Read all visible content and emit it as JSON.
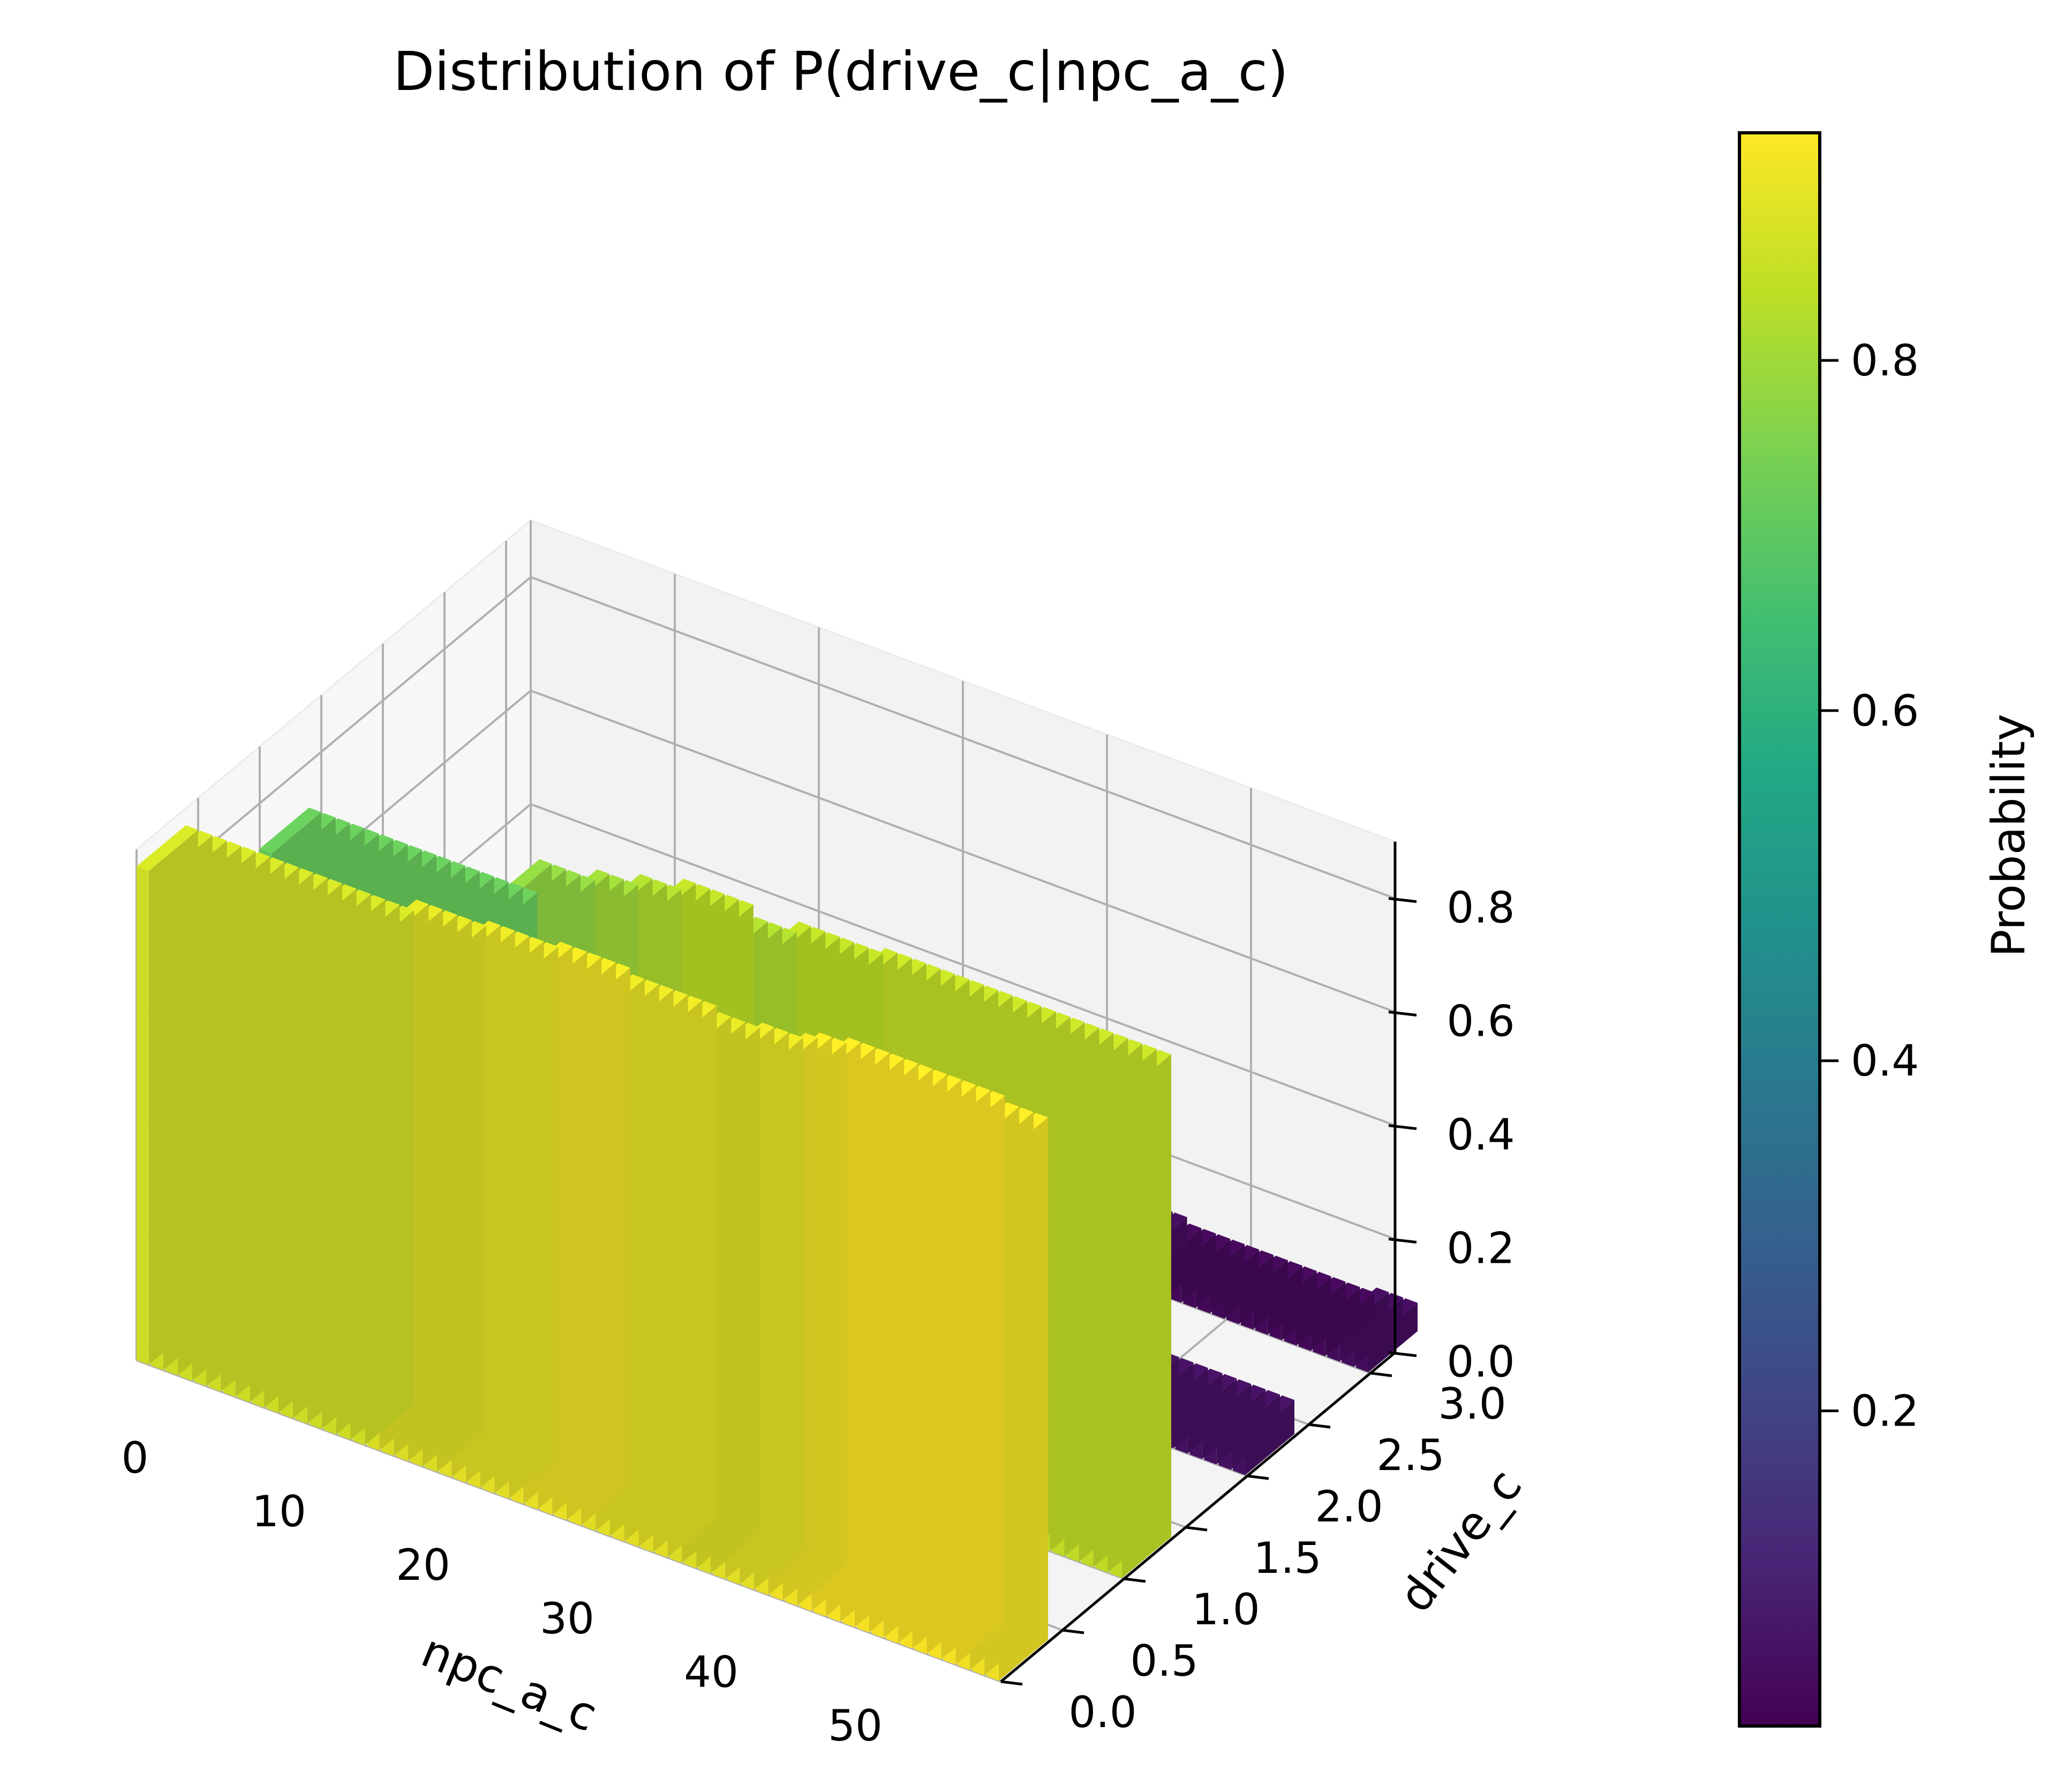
{
  "chart_data": {
    "type": "bar3d",
    "title": "Distribution of P(drive_c|npc_a_c)",
    "xlabel": "npc_a_c",
    "ylabel": "drive_c",
    "zlabel": "",
    "xlim": [
      0,
      60
    ],
    "ylim": [
      0,
      3.2
    ],
    "zlim": [
      0,
      0.9
    ],
    "x_ticks": [
      "0",
      "10",
      "20",
      "30",
      "40",
      "50"
    ],
    "y_ticks": [
      "0.0",
      "0.5",
      "1.0",
      "1.5",
      "2.0",
      "2.5",
      "3.0"
    ],
    "z_ticks": [
      "0.0",
      "0.2",
      "0.4",
      "0.6",
      "0.8"
    ],
    "grid": true,
    "colorbar": {
      "label": "Probability",
      "ticks": [
        "0.2",
        "0.4",
        "0.6",
        "0.8"
      ],
      "min": 0.02,
      "max": 0.93,
      "colormap": "viridis"
    },
    "series": [
      {
        "y": 0,
        "values": [
          0.87,
          0.87,
          0.87,
          0.87,
          0.87,
          0.87,
          0.87,
          0.87,
          0.87,
          0.87,
          0.87,
          0.87,
          0.87,
          0.87,
          0.87,
          0.87,
          0.89,
          0.89,
          0.89,
          0.89,
          0.89,
          0.9,
          0.9,
          0.9,
          0.9,
          0.9,
          0.91,
          0.91,
          0.91,
          0.91,
          0.91,
          0.9,
          0.9,
          0.9,
          0.9,
          0.9,
          0.9,
          0.89,
          0.89,
          0.89,
          0.9,
          0.9,
          0.9,
          0.91,
          0.92,
          0.92,
          0.93,
          0.93,
          0.93,
          0.93,
          0.93,
          0.93,
          0.93,
          0.93,
          0.93,
          0.93,
          0.93,
          0.92,
          0.92,
          0.92
        ]
      },
      {
        "y": 1,
        "values": [
          0.72,
          0.72,
          0.72,
          0.72,
          0.72,
          0.72,
          0.72,
          0.72,
          0.72,
          0.72,
          0.72,
          0.72,
          0.72,
          0.72,
          0.72,
          0.72,
          0.78,
          0.78,
          0.78,
          0.78,
          0.8,
          0.8,
          0.8,
          0.82,
          0.82,
          0.82,
          0.84,
          0.84,
          0.84,
          0.84,
          0.84,
          0.82,
          0.82,
          0.82,
          0.84,
          0.84,
          0.84,
          0.84,
          0.84,
          0.84,
          0.85,
          0.85,
          0.85,
          0.85,
          0.85,
          0.85,
          0.85,
          0.85,
          0.85,
          0.85,
          0.85,
          0.85,
          0.85,
          0.85,
          0.85,
          0.85,
          0.85,
          0.85,
          0.85,
          0.85
        ]
      },
      {
        "y": 2,
        "values": [
          0.1,
          0.1,
          0.1,
          0.1,
          0.1,
          0.1,
          0.1,
          0.1,
          0.1,
          0.1,
          0.1,
          0.1,
          0.1,
          0.1,
          0.1,
          0.1,
          0.08,
          0.08,
          0.08,
          0.08,
          0.08,
          0.07,
          0.07,
          0.07,
          0.07,
          0.07,
          0.06,
          0.06,
          0.06,
          0.06,
          0.06,
          0.07,
          0.07,
          0.07,
          0.07,
          0.07,
          0.07,
          0.07,
          0.07,
          0.07,
          0.07,
          0.07,
          0.07,
          0.07,
          0.07,
          0.07,
          0.06,
          0.06,
          0.06,
          0.06,
          0.06,
          0.06,
          0.06,
          0.06,
          0.06,
          0.06,
          0.06,
          0.06,
          0.06,
          0.06
        ]
      },
      {
        "y": 3,
        "values": [
          0.12,
          0.12,
          0.12,
          0.12,
          0.12,
          0.12,
          0.12,
          0.12,
          0.12,
          0.12,
          0.12,
          0.12,
          0.12,
          0.12,
          0.12,
          0.12,
          0.1,
          0.1,
          0.1,
          0.1,
          0.1,
          0.09,
          0.09,
          0.09,
          0.09,
          0.09,
          0.08,
          0.08,
          0.08,
          0.08,
          0.08,
          0.07,
          0.07,
          0.07,
          0.07,
          0.07,
          0.06,
          0.06,
          0.06,
          0.06,
          0.05,
          0.05,
          0.05,
          0.05,
          0.04,
          0.04,
          0.04,
          0.04,
          0.04,
          0.04,
          0.04,
          0.04,
          0.04,
          0.04,
          0.04,
          0.04,
          0.04,
          0.05,
          0.05,
          0.05
        ]
      }
    ]
  }
}
